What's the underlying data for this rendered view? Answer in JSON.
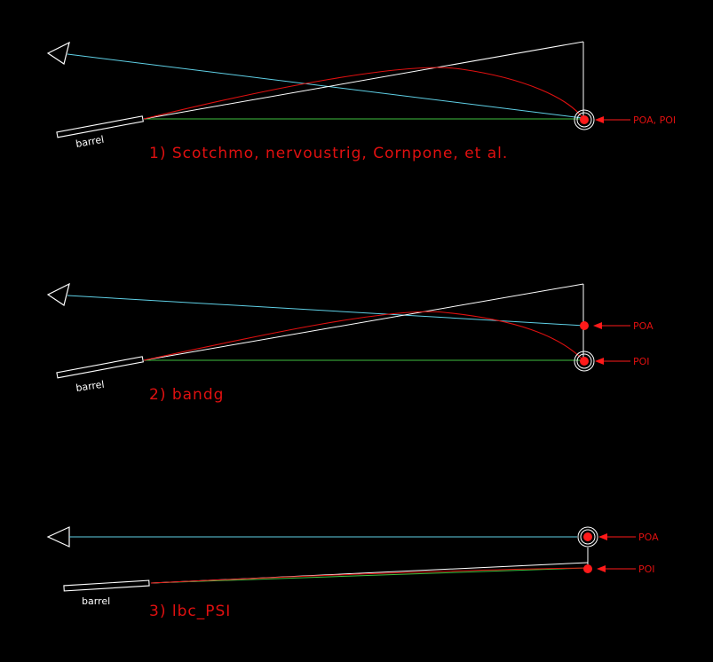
{
  "colors": {
    "background": "#000000",
    "sight_line": "#5fd0e6",
    "bore_line": "#3fbf3f",
    "trajectory": "#e01010",
    "structure": "#ffffff",
    "caption": "#e01010",
    "marker": "#ff1a1a"
  },
  "diagrams": [
    {
      "barrel_label": "barrel",
      "caption": "1) Scotchmo, nervoustrig, Cornpone, et al.",
      "markers": [
        {
          "label": "POA, POI",
          "icon": "target-ring-icon"
        }
      ]
    },
    {
      "barrel_label": "barrel",
      "caption": "2) bandg",
      "markers": [
        {
          "label": "POA",
          "icon": "red-dot-icon"
        },
        {
          "label": "POI",
          "icon": "target-ring-icon"
        }
      ]
    },
    {
      "barrel_label": "barrel",
      "caption": "3) lbc_PSI",
      "markers": [
        {
          "label": "POA",
          "icon": "target-ring-icon"
        },
        {
          "label": "POI",
          "icon": "red-dot-icon"
        }
      ]
    }
  ]
}
